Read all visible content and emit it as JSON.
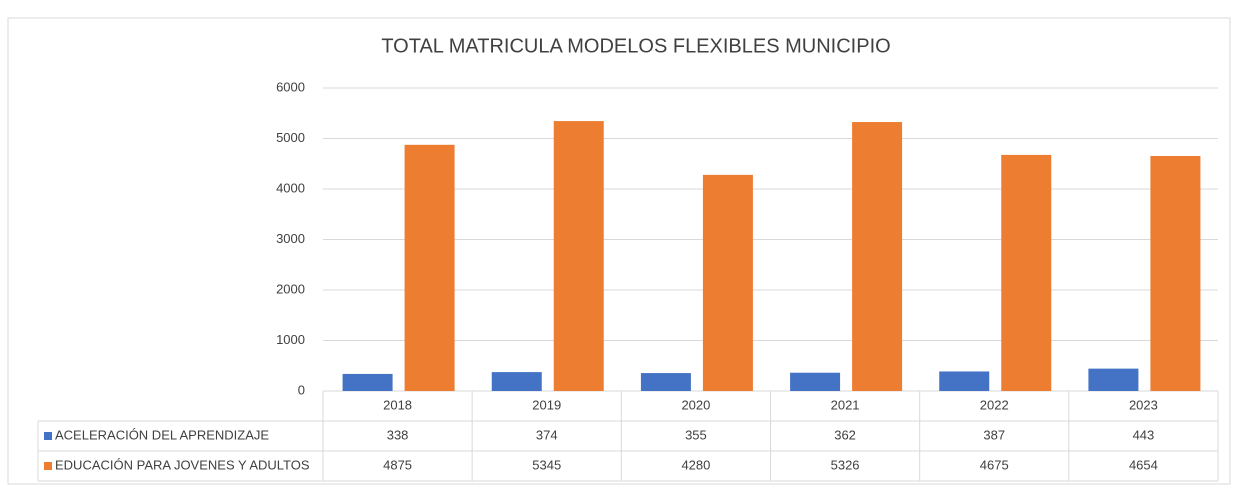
{
  "chart_data": {
    "type": "bar",
    "title": "TOTAL  MATRICULA MODELOS FLEXIBLES  MUNICIPIO",
    "categories": [
      "2018",
      "2019",
      "2020",
      "2021",
      "2022",
      "2023"
    ],
    "series": [
      {
        "name": "ACELERACIÓN DEL APRENDIZAJE",
        "color": "#4472c4",
        "values": [
          338,
          374,
          355,
          362,
          387,
          443
        ]
      },
      {
        "name": "EDUCACIÓN PARA  JOVENES Y ADULTOS",
        "color": "#ed7d31",
        "values": [
          4875,
          5345,
          4280,
          5326,
          4675,
          4654
        ]
      }
    ],
    "ylim": [
      0,
      6000
    ],
    "yticks": [
      0,
      1000,
      2000,
      3000,
      4000,
      5000,
      6000
    ],
    "grid": true
  }
}
